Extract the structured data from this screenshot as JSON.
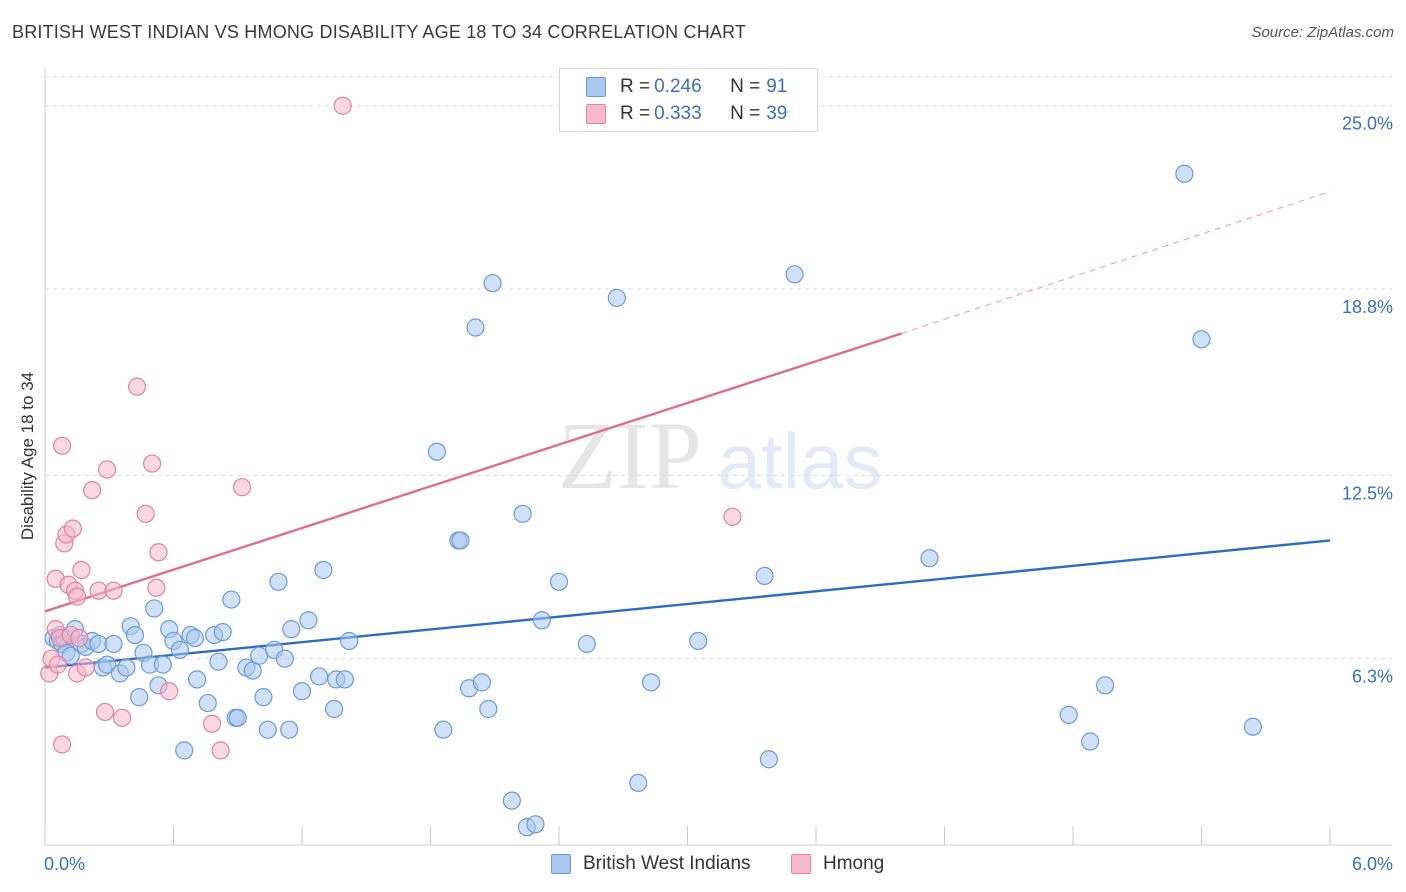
{
  "header": {
    "title": "BRITISH WEST INDIAN VS HMONG DISABILITY AGE 18 TO 34 CORRELATION CHART",
    "source": "Source: ZipAtlas.com"
  },
  "watermark": {
    "zip": "ZIP",
    "atlas": "atlas"
  },
  "legend": {
    "rows": [
      {
        "r_label": "R = ",
        "r_value": "0.246",
        "n_label": "N = ",
        "n_value": "91",
        "color": "#a9c8f0"
      },
      {
        "r_label": "R = ",
        "r_value": "0.333",
        "n_label": "N = ",
        "n_value": "39",
        "color": "#f6b8cb"
      }
    ]
  },
  "bottom_legend": {
    "series1": "British West Indians",
    "series2": "Hmong"
  },
  "chart_data": {
    "type": "scatter",
    "title": "BRITISH WEST INDIAN VS HMONG DISABILITY AGE 18 TO 34 CORRELATION CHART",
    "xlabel": "",
    "ylabel": "Disability Age 18 to 34",
    "xlim": [
      0.0,
      6.0
    ],
    "ylim": [
      0.0,
      25.6
    ],
    "x_tick_labels": [
      "0.0%",
      "6.0%"
    ],
    "y_ticks": [
      6.3,
      12.5,
      18.8,
      25.0
    ],
    "y_tick_labels": [
      "6.3%",
      "12.5%",
      "18.8%",
      "25.0%"
    ],
    "grid": true,
    "legend_position": "top-center",
    "series": [
      {
        "name": "British West Indians",
        "color": "#a9c8f0",
        "stroke": "#6a9bd8",
        "trend_color": "#2b6cc4",
        "trend": {
          "x": [
            0.0,
            6.0
          ],
          "y": [
            6.0,
            10.3
          ]
        },
        "points": [
          [
            0.04,
            7.0
          ],
          [
            0.06,
            6.9
          ],
          [
            0.07,
            7.1
          ],
          [
            0.08,
            6.8
          ],
          [
            0.09,
            7.0
          ],
          [
            0.1,
            6.5
          ],
          [
            0.12,
            6.4
          ],
          [
            0.14,
            7.3
          ],
          [
            0.17,
            6.8
          ],
          [
            0.19,
            6.7
          ],
          [
            0.22,
            6.9
          ],
          [
            0.25,
            6.8
          ],
          [
            0.27,
            6.0
          ],
          [
            0.29,
            6.1
          ],
          [
            0.32,
            6.8
          ],
          [
            0.35,
            5.8
          ],
          [
            0.38,
            6.0
          ],
          [
            0.4,
            7.4
          ],
          [
            0.42,
            7.1
          ],
          [
            0.44,
            5.0
          ],
          [
            0.46,
            6.5
          ],
          [
            0.49,
            6.1
          ],
          [
            0.51,
            8.0
          ],
          [
            0.53,
            5.4
          ],
          [
            0.55,
            6.1
          ],
          [
            0.58,
            7.3
          ],
          [
            0.6,
            6.9
          ],
          [
            0.63,
            6.6
          ],
          [
            0.65,
            3.2
          ],
          [
            0.68,
            7.1
          ],
          [
            0.7,
            7.0
          ],
          [
            0.71,
            5.6
          ],
          [
            0.76,
            4.8
          ],
          [
            0.79,
            7.1
          ],
          [
            0.81,
            6.2
          ],
          [
            0.83,
            7.2
          ],
          [
            0.87,
            8.3
          ],
          [
            0.89,
            4.3
          ],
          [
            0.9,
            4.3
          ],
          [
            0.94,
            6.0
          ],
          [
            0.97,
            5.9
          ],
          [
            1.0,
            6.4
          ],
          [
            1.02,
            5.0
          ],
          [
            1.04,
            3.9
          ],
          [
            1.07,
            6.6
          ],
          [
            1.09,
            8.9
          ],
          [
            1.12,
            6.3
          ],
          [
            1.14,
            3.9
          ],
          [
            1.15,
            7.3
          ],
          [
            1.2,
            5.2
          ],
          [
            1.23,
            7.6
          ],
          [
            1.28,
            5.7
          ],
          [
            1.3,
            9.3
          ],
          [
            1.35,
            4.6
          ],
          [
            1.36,
            5.6
          ],
          [
            1.4,
            5.6
          ],
          [
            1.42,
            6.9
          ],
          [
            1.83,
            13.3
          ],
          [
            1.86,
            3.9
          ],
          [
            1.93,
            10.3
          ],
          [
            1.94,
            10.3
          ],
          [
            1.98,
            5.3
          ],
          [
            2.01,
            17.5
          ],
          [
            2.04,
            5.5
          ],
          [
            2.07,
            4.6
          ],
          [
            2.09,
            19.0
          ],
          [
            2.18,
            1.5
          ],
          [
            2.23,
            11.2
          ],
          [
            2.25,
            0.6
          ],
          [
            2.29,
            0.7
          ],
          [
            2.32,
            7.6
          ],
          [
            2.4,
            8.9
          ],
          [
            2.53,
            6.8
          ],
          [
            2.67,
            18.5
          ],
          [
            2.77,
            2.1
          ],
          [
            2.83,
            5.5
          ],
          [
            3.05,
            6.9
          ],
          [
            3.36,
            9.1
          ],
          [
            3.38,
            2.9
          ],
          [
            3.5,
            19.3
          ],
          [
            4.13,
            9.7
          ],
          [
            4.78,
            4.4
          ],
          [
            4.88,
            3.5
          ],
          [
            4.95,
            5.4
          ],
          [
            5.32,
            22.7
          ],
          [
            5.4,
            17.1
          ],
          [
            5.64,
            4.0
          ]
        ]
      },
      {
        "name": "Hmong",
        "color": "#f6b8cb",
        "stroke": "#e3819f",
        "trend_color": "#e06b93",
        "trend": {
          "x": [
            0.0,
            4.0
          ],
          "y": [
            7.9,
            17.3
          ]
        },
        "trend_extension": {
          "x": [
            4.0,
            6.0
          ],
          "y": [
            17.3,
            22.1
          ]
        },
        "points": [
          [
            0.02,
            5.8
          ],
          [
            0.03,
            6.3
          ],
          [
            0.05,
            7.3
          ],
          [
            0.05,
            9.0
          ],
          [
            0.06,
            6.1
          ],
          [
            0.07,
            7.0
          ],
          [
            0.08,
            13.5
          ],
          [
            0.08,
            3.4
          ],
          [
            0.09,
            10.2
          ],
          [
            0.1,
            10.5
          ],
          [
            0.11,
            8.8
          ],
          [
            0.12,
            7.1
          ],
          [
            0.13,
            10.7
          ],
          [
            0.14,
            8.6
          ],
          [
            0.15,
            5.8
          ],
          [
            0.15,
            8.4
          ],
          [
            0.16,
            7.0
          ],
          [
            0.17,
            9.3
          ],
          [
            0.19,
            6.0
          ],
          [
            0.22,
            12.0
          ],
          [
            0.25,
            8.6
          ],
          [
            0.28,
            4.5
          ],
          [
            0.29,
            12.7
          ],
          [
            0.32,
            8.6
          ],
          [
            0.36,
            4.3
          ],
          [
            0.43,
            15.5
          ],
          [
            0.47,
            11.2
          ],
          [
            0.5,
            12.9
          ],
          [
            0.52,
            8.7
          ],
          [
            0.53,
            9.9
          ],
          [
            0.58,
            5.2
          ],
          [
            0.78,
            4.1
          ],
          [
            0.82,
            3.2
          ],
          [
            0.92,
            12.1
          ],
          [
            1.39,
            25.0
          ],
          [
            3.21,
            11.1
          ]
        ]
      }
    ]
  }
}
